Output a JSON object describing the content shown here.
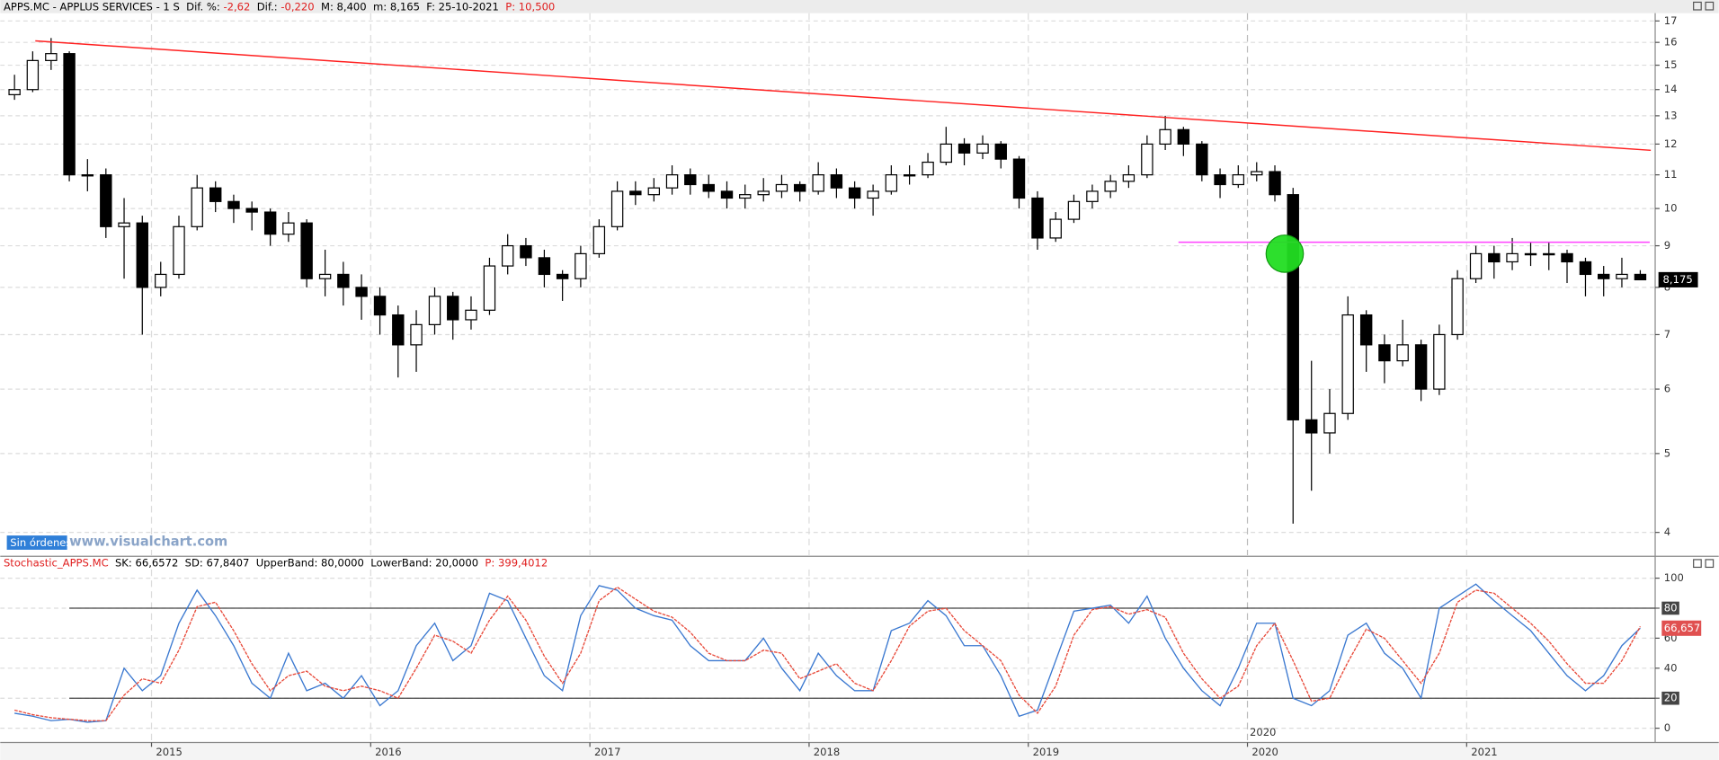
{
  "chart_data": [
    {
      "type": "candlestick",
      "title": "APPS.MC - APPLUS SERVICES -  1 S",
      "stats": [
        {
          "label": "Dif. %:",
          "value": "-2,62",
          "color": "#e02020"
        },
        {
          "label": "Dif.:",
          "value": "-0,220",
          "color": "#e02020"
        },
        {
          "label": "M:",
          "value": "8,400",
          "color": "#000000"
        },
        {
          "label": "m:",
          "value": "8,165",
          "color": "#000000"
        },
        {
          "label": "F:",
          "value": "25-10-2021",
          "color": "#000000"
        },
        {
          "label": "P:",
          "value": "10,500",
          "color": "#e02020"
        }
      ],
      "x": [
        2014.375,
        2014.458,
        2014.542,
        2014.625,
        2014.708,
        2014.792,
        2014.875,
        2014.958,
        2015.042,
        2015.125,
        2015.208,
        2015.292,
        2015.375,
        2015.458,
        2015.542,
        2015.625,
        2015.708,
        2015.792,
        2015.875,
        2015.958,
        2016.042,
        2016.125,
        2016.208,
        2016.292,
        2016.375,
        2016.458,
        2016.542,
        2016.625,
        2016.708,
        2016.792,
        2016.875,
        2016.958,
        2017.042,
        2017.125,
        2017.208,
        2017.292,
        2017.375,
        2017.458,
        2017.542,
        2017.625,
        2017.708,
        2017.792,
        2017.875,
        2017.958,
        2018.042,
        2018.125,
        2018.208,
        2018.292,
        2018.375,
        2018.458,
        2018.542,
        2018.625,
        2018.708,
        2018.792,
        2018.875,
        2018.958,
        2019.042,
        2019.125,
        2019.208,
        2019.292,
        2019.375,
        2019.458,
        2019.542,
        2019.625,
        2019.708,
        2019.792,
        2019.875,
        2019.958,
        2020.042,
        2020.125,
        2020.208,
        2020.292,
        2020.375,
        2020.458,
        2020.542,
        2020.625,
        2020.708,
        2020.792,
        2020.875,
        2020.958,
        2021.042,
        2021.125,
        2021.208,
        2021.292,
        2021.375,
        2021.458,
        2021.542,
        2021.625,
        2021.708,
        2021.792
      ],
      "open": [
        13.8,
        14.0,
        15.2,
        15.5,
        11.0,
        11.0,
        9.5,
        9.6,
        8.0,
        8.3,
        9.5,
        10.6,
        10.2,
        10.0,
        9.9,
        9.3,
        9.6,
        8.2,
        8.3,
        8.0,
        7.8,
        7.4,
        6.8,
        7.2,
        7.8,
        7.3,
        7.5,
        8.5,
        9.0,
        8.7,
        8.3,
        8.2,
        8.8,
        9.5,
        10.5,
        10.4,
        10.6,
        11.0,
        10.7,
        10.5,
        10.3,
        10.4,
        10.5,
        10.7,
        10.5,
        11.0,
        10.6,
        10.3,
        10.5,
        11.0,
        11.0,
        11.4,
        12.0,
        11.7,
        12.0,
        11.5,
        10.3,
        9.2,
        9.7,
        10.2,
        10.5,
        10.8,
        11.0,
        12.0,
        12.5,
        12.0,
        11.0,
        10.7,
        11.0,
        11.1,
        10.4,
        5.5,
        5.3,
        5.6,
        7.4,
        6.8,
        6.5,
        6.8,
        6.0,
        7.0,
        8.2,
        8.8,
        8.6,
        8.8,
        8.8,
        8.8,
        8.6,
        8.3,
        8.2,
        8.3
      ],
      "high": [
        14.6,
        15.6,
        16.2,
        15.6,
        11.5,
        11.2,
        10.3,
        9.8,
        8.6,
        9.8,
        11.0,
        10.8,
        10.4,
        10.2,
        10.0,
        9.9,
        9.7,
        8.9,
        8.6,
        8.3,
        8.0,
        7.6,
        7.5,
        8.0,
        7.9,
        7.8,
        8.7,
        9.3,
        9.2,
        8.9,
        8.4,
        9.0,
        9.7,
        10.8,
        10.8,
        10.9,
        11.3,
        11.2,
        11.0,
        10.8,
        10.7,
        10.9,
        11.0,
        10.8,
        11.4,
        11.2,
        10.8,
        10.7,
        11.3,
        11.3,
        11.7,
        12.6,
        12.2,
        12.3,
        12.1,
        11.6,
        10.5,
        9.9,
        10.4,
        10.7,
        11.0,
        11.3,
        12.3,
        13.0,
        12.6,
        12.1,
        11.2,
        11.3,
        11.4,
        11.3,
        10.6,
        6.5,
        6.0,
        7.8,
        7.5,
        7.0,
        7.3,
        6.9,
        7.2,
        8.4,
        9.0,
        9.0,
        9.2,
        9.1,
        9.1,
        8.9,
        8.7,
        8.5,
        8.7,
        8.4
      ],
      "low": [
        13.6,
        13.9,
        14.8,
        10.8,
        10.5,
        9.2,
        8.2,
        7.0,
        7.8,
        8.2,
        9.4,
        9.9,
        9.6,
        9.4,
        9.0,
        9.1,
        8.0,
        7.8,
        7.6,
        7.3,
        7.0,
        6.2,
        6.3,
        7.0,
        6.9,
        7.1,
        7.4,
        8.3,
        8.5,
        8.0,
        7.7,
        8.0,
        8.7,
        9.4,
        10.1,
        10.2,
        10.4,
        10.4,
        10.3,
        10.0,
        10.0,
        10.2,
        10.3,
        10.2,
        10.4,
        10.3,
        10.0,
        9.8,
        10.4,
        10.7,
        10.9,
        11.3,
        11.3,
        11.5,
        11.2,
        10.0,
        8.9,
        9.1,
        9.6,
        10.0,
        10.3,
        10.6,
        10.9,
        11.8,
        11.6,
        10.8,
        10.3,
        10.6,
        10.8,
        10.2,
        4.1,
        4.5,
        5.0,
        5.5,
        6.3,
        6.1,
        6.4,
        5.8,
        5.9,
        6.9,
        8.1,
        8.2,
        8.4,
        8.5,
        8.4,
        8.1,
        7.8,
        7.8,
        8.0,
        8.165
      ],
      "close": [
        14.0,
        15.2,
        15.5,
        11.0,
        11.0,
        9.5,
        9.6,
        8.0,
        8.3,
        9.5,
        10.6,
        10.2,
        10.0,
        9.9,
        9.3,
        9.6,
        8.2,
        8.3,
        8.0,
        7.8,
        7.4,
        6.8,
        7.2,
        7.8,
        7.3,
        7.5,
        8.5,
        9.0,
        8.7,
        8.3,
        8.2,
        8.8,
        9.5,
        10.5,
        10.4,
        10.6,
        11.0,
        10.7,
        10.5,
        10.3,
        10.4,
        10.5,
        10.7,
        10.5,
        11.0,
        10.6,
        10.3,
        10.5,
        11.0,
        11.0,
        11.4,
        12.0,
        11.7,
        12.0,
        11.5,
        10.3,
        9.2,
        9.7,
        10.2,
        10.5,
        10.8,
        11.0,
        12.0,
        12.5,
        12.0,
        11.0,
        10.7,
        11.0,
        11.1,
        10.4,
        5.5,
        5.3,
        5.6,
        7.4,
        6.8,
        6.5,
        6.8,
        6.0,
        7.0,
        8.2,
        8.8,
        8.6,
        8.8,
        8.8,
        8.8,
        8.6,
        8.3,
        8.2,
        8.3,
        8.175
      ],
      "up_color": "#ffffff",
      "down_color": "#000000",
      "last_label": "8,175",
      "xlim": [
        2014.31,
        2021.86
      ],
      "xticks": [
        2015,
        2016,
        2017,
        2018,
        2019,
        2020,
        2021
      ],
      "ylim": [
        3.75,
        17.38
      ],
      "yticks": [
        4,
        5,
        6,
        7,
        8,
        9,
        10,
        11,
        12,
        13,
        14,
        15,
        16,
        17
      ],
      "log_scale": true,
      "grid": true,
      "trendline": {
        "x": [
          2014.47,
          2021.84
        ],
        "y": [
          16.07,
          11.79
        ],
        "color": "#ff2020"
      },
      "hline": {
        "x": [
          2019.685,
          2021.835
        ],
        "y": 9.09,
        "color": "#ff40ff"
      },
      "marker": {
        "x": 2020.17,
        "y": 8.8,
        "color": "#22dd22"
      }
    },
    {
      "type": "line",
      "title": "Stochastic_APPS.MC",
      "stats": [
        {
          "label": "SK:",
          "value": "66,6572",
          "color": "#000000"
        },
        {
          "label": "SD:",
          "value": "67,8407",
          "color": "#000000"
        },
        {
          "label": "UpperBand:",
          "value": "80,0000",
          "color": "#000000"
        },
        {
          "label": "LowerBand:",
          "value": "20,0000",
          "color": "#000000"
        },
        {
          "label": "P:",
          "value": "399,4012",
          "color": "#e02020"
        }
      ],
      "series": [
        {
          "color": "#3a78d0",
          "values": [
            10,
            8,
            5,
            6,
            4,
            5,
            40,
            25,
            35,
            70,
            92,
            75,
            55,
            30,
            20,
            50,
            25,
            30,
            20,
            35,
            15,
            25,
            55,
            70,
            45,
            55,
            90,
            85,
            60,
            35,
            25,
            75,
            95,
            92,
            80,
            75,
            72,
            55,
            45,
            45,
            45,
            60,
            40,
            25,
            50,
            35,
            25,
            25,
            65,
            70,
            85,
            75,
            55,
            55,
            35,
            8,
            12,
            45,
            78,
            80,
            82,
            70,
            88,
            60,
            40,
            25,
            15,
            40,
            70,
            70,
            20,
            15,
            25,
            62,
            70,
            50,
            40,
            20,
            80,
            88,
            96,
            85,
            75,
            65,
            50,
            35,
            25,
            35,
            55,
            66.6572
          ]
        },
        {
          "color": "#e84a3a",
          "values": [
            12,
            9,
            7,
            6,
            5,
            5,
            22,
            33,
            30,
            52,
            81,
            84,
            65,
            43,
            25,
            35,
            38,
            28,
            25,
            28,
            25,
            20,
            40,
            62,
            58,
            50,
            72,
            88,
            72,
            48,
            30,
            50,
            85,
            94,
            86,
            78,
            74,
            64,
            50,
            45,
            45,
            52,
            50,
            33,
            38,
            43,
            30,
            25,
            45,
            68,
            78,
            80,
            65,
            55,
            45,
            22,
            10,
            28,
            62,
            79,
            81,
            76,
            79,
            74,
            50,
            33,
            20,
            28,
            55,
            70,
            45,
            18,
            20,
            44,
            66,
            60,
            45,
            30,
            50,
            84,
            92,
            90,
            80,
            70,
            58,
            43,
            30,
            30,
            45,
            67.8407
          ]
        }
      ],
      "bands": [
        80,
        20
      ],
      "last_label": "66,657",
      "ylim": [
        -9.5,
        105.8
      ],
      "yticks": [
        0,
        20,
        40,
        60,
        80,
        100
      ],
      "grid": true
    }
  ],
  "overlay": {
    "orders": "Sin órdenes",
    "watermark": "www.visualchart.com"
  }
}
